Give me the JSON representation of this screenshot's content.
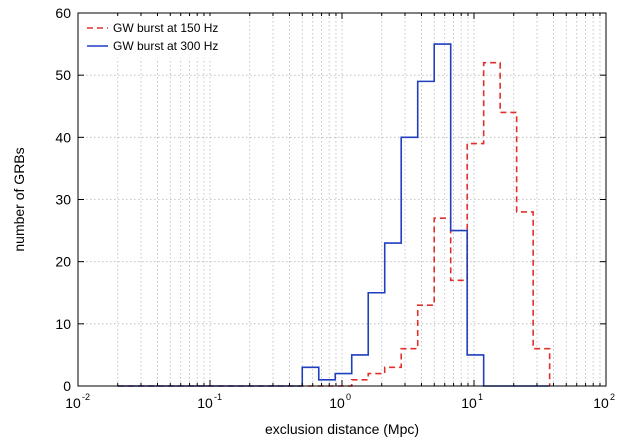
{
  "chart_data": {
    "type": "step-histogram",
    "xlabel": "exclusion distance (Mpc)",
    "ylabel": "number of GRBs",
    "xscale": "log",
    "xlim": [
      0.01,
      100
    ],
    "ylim": [
      0,
      60
    ],
    "grid": true,
    "legend_position": "top-left",
    "x_ticks": [
      {
        "base": "10",
        "exp": "-2",
        "value": 0.01
      },
      {
        "base": "10",
        "exp": "-1",
        "value": 0.1
      },
      {
        "base": "10",
        "exp": "0",
        "value": 1
      },
      {
        "base": "10",
        "exp": "1",
        "value": 10
      },
      {
        "base": "10",
        "exp": "2",
        "value": 100
      }
    ],
    "y_ticks": [
      "0",
      "10",
      "20",
      "30",
      "40",
      "50",
      "60"
    ],
    "bin_edges": [
      0.02,
      0.5,
      0.6667,
      0.8889,
      1.1852,
      1.5802,
      2.107,
      2.8093,
      3.7457,
      4.9943,
      6.659,
      8.8786,
      11.838,
      15.784,
      21.046,
      28.061,
      37.414
    ],
    "series": [
      {
        "name": "GW burst at 150 Hz",
        "color": "#e0302c",
        "dash": "dashed",
        "counts": [
          0,
          0,
          0,
          0,
          1,
          2,
          3,
          6,
          13,
          27,
          17,
          39,
          52,
          44,
          28,
          6
        ]
      },
      {
        "name": "GW burst at 300 Hz",
        "color": "#1f3fbf",
        "dash": "solid",
        "counts": [
          0,
          3,
          1,
          2,
          5,
          15,
          23,
          40,
          49,
          55,
          25,
          5,
          0,
          0,
          0,
          0
        ]
      }
    ]
  }
}
